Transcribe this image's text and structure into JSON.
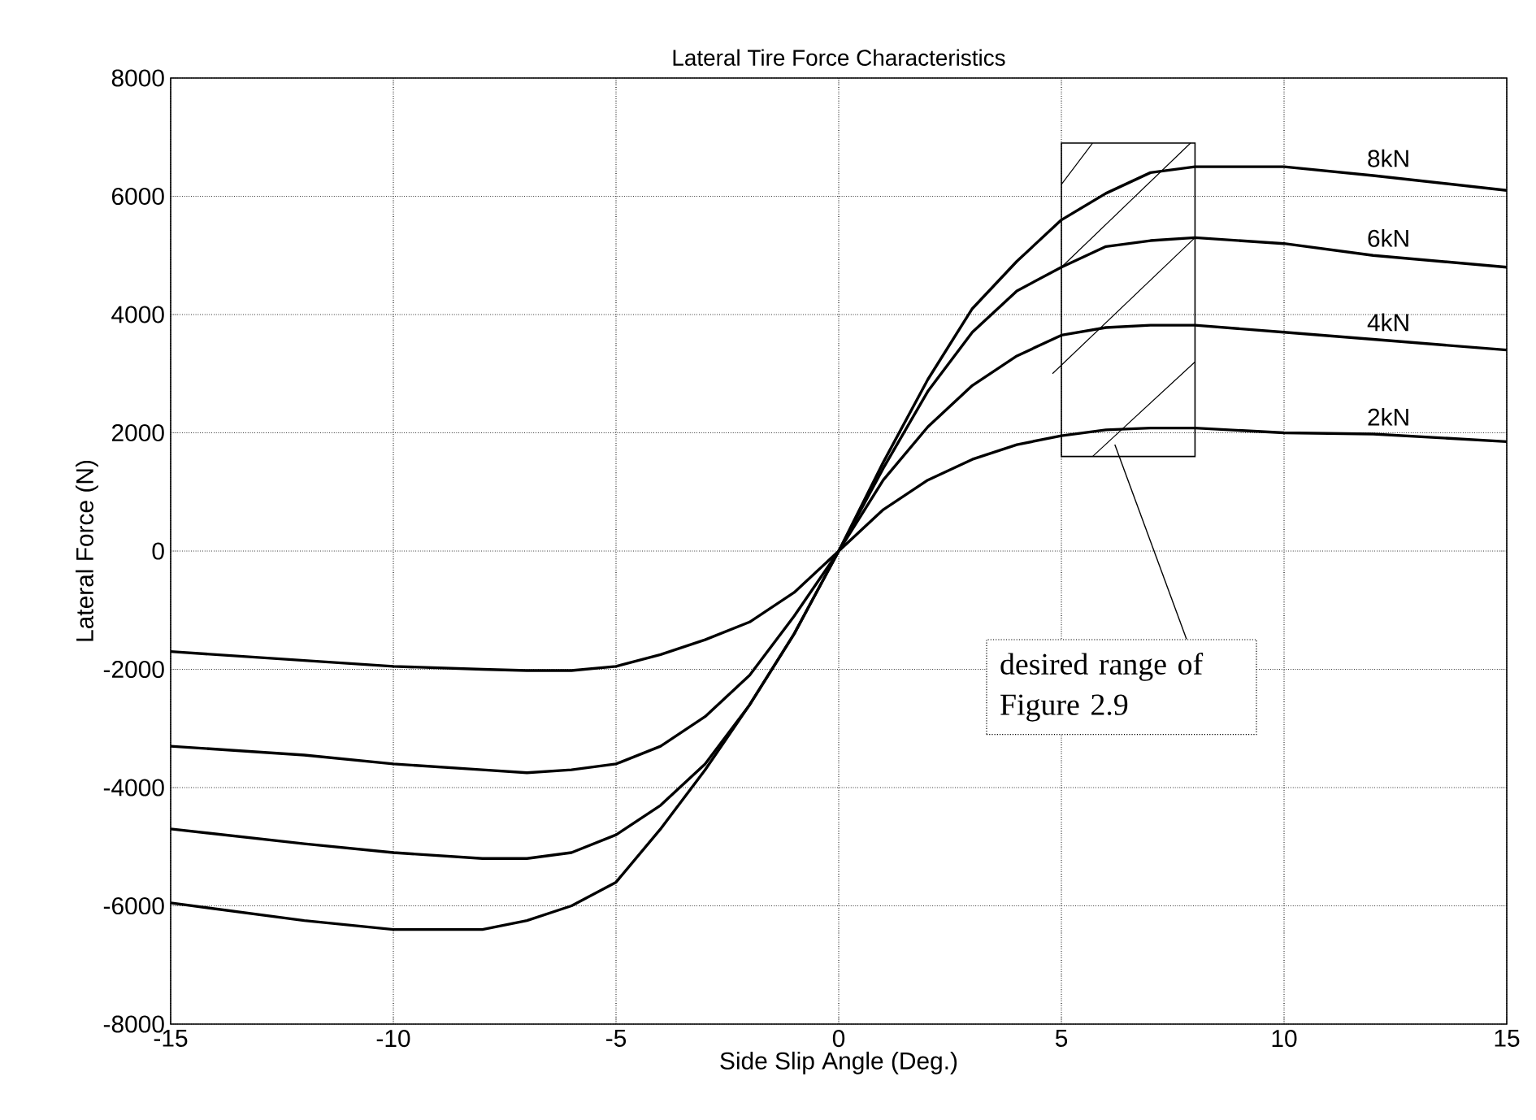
{
  "chart_data": {
    "type": "line",
    "title": "Lateral Tire Force Characteristics",
    "xlabel": "Side Slip Angle (Deg.)",
    "ylabel": "Lateral Force (N)",
    "xlim": [
      -15,
      15
    ],
    "xticks": [
      -15,
      -10,
      -5,
      0,
      5,
      10,
      15
    ],
    "ylim": [
      -8000,
      8000
    ],
    "yticks": [
      -8000,
      -6000,
      -4000,
      -2000,
      0,
      2000,
      4000,
      6000,
      8000
    ],
    "grid": true,
    "line_style": "solid",
    "x": [
      -15,
      -12,
      -10,
      -8,
      -7,
      -6,
      -5,
      -4,
      -3,
      -2,
      -1,
      0,
      1,
      2,
      3,
      4,
      5,
      6,
      7,
      8,
      10,
      12,
      15
    ],
    "series": [
      {
        "name": "2kN",
        "color": "#000000",
        "values": [
          -1700,
          -1850,
          -1950,
          -2000,
          -2020,
          -2020,
          -1950,
          -1750,
          -1500,
          -1200,
          -700,
          0,
          700,
          1200,
          1550,
          1800,
          1950,
          2050,
          2080,
          2080,
          2000,
          1980,
          1850
        ]
      },
      {
        "name": "4kN",
        "color": "#000000",
        "values": [
          -3300,
          -3450,
          -3600,
          -3700,
          -3750,
          -3700,
          -3600,
          -3300,
          -2800,
          -2100,
          -1100,
          0,
          1200,
          2100,
          2800,
          3300,
          3650,
          3780,
          3820,
          3820,
          3700,
          3580,
          3400
        ]
      },
      {
        "name": "6kN",
        "color": "#000000",
        "values": [
          -4700,
          -4950,
          -5100,
          -5200,
          -5200,
          -5100,
          -4800,
          -4300,
          -3600,
          -2600,
          -1400,
          0,
          1400,
          2700,
          3700,
          4400,
          4800,
          5150,
          5250,
          5300,
          5200,
          5000,
          4800
        ]
      },
      {
        "name": "8kN",
        "color": "#000000",
        "values": [
          -5950,
          -6250,
          -6400,
          -6400,
          -6250,
          -6000,
          -5600,
          -4700,
          -3700,
          -2600,
          -1400,
          0,
          1500,
          2900,
          4100,
          4900,
          5600,
          6050,
          6400,
          6500,
          6500,
          6350,
          6100
        ]
      }
    ],
    "annotations": [
      "desired range of Figure 2.9"
    ]
  }
}
